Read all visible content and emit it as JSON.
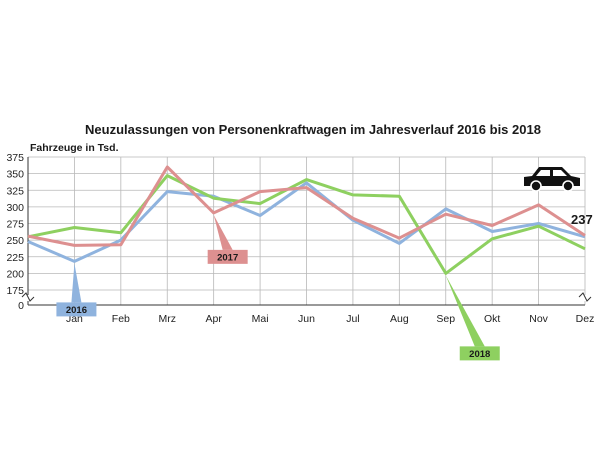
{
  "chart_data": {
    "type": "line",
    "title": "Neuzulassungen von Personenkraftwagen im Jahresverlauf 2016 bis 2018",
    "ylabel": "Fahrzeuge in Tsd.",
    "categories": [
      "",
      "Jan",
      "Feb",
      "Mrz",
      "Apr",
      "Mai",
      "Jun",
      "Jul",
      "Aug",
      "Sep",
      "Okt",
      "Nov",
      "Dez"
    ],
    "y_ticks": [
      "375",
      "350",
      "325",
      "300",
      "275",
      "250",
      "225",
      "200",
      "175",
      "0"
    ],
    "ylim": [
      175,
      375
    ],
    "y_axis_break": true,
    "grid": true,
    "series": [
      {
        "name": "2016",
        "color": "#8fb3de",
        "values": [
          248,
          218,
          250,
          323,
          316,
          287,
          336,
          280,
          245,
          297,
          263,
          275,
          255
        ]
      },
      {
        "name": "2017",
        "color": "#dd9090",
        "values": [
          256,
          242,
          243,
          360,
          291,
          323,
          329,
          283,
          253,
          289,
          272,
          303,
          257
        ]
      },
      {
        "name": "2018",
        "color": "#8ed060",
        "values": [
          255,
          269,
          261,
          347,
          313,
          305,
          341,
          318,
          316,
          200,
          252,
          271,
          237
        ]
      }
    ],
    "annotations": [
      {
        "text": "237",
        "series": "2018",
        "index": 12
      }
    ],
    "icons": [
      "car-icon"
    ]
  }
}
